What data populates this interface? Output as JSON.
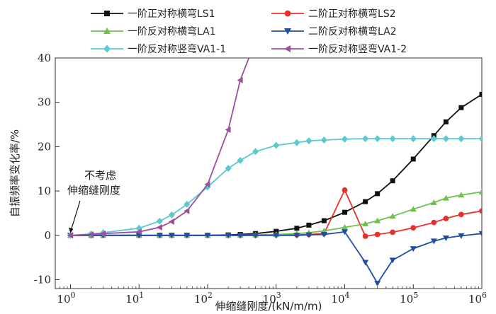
{
  "chart_data": {
    "type": "line",
    "xlabel": "伸缩缝刚度/(kN/m/m)",
    "ylabel": "自振频率变化率/%",
    "xscale": "log",
    "xlim": [
      0.6,
      1000000
    ],
    "ylim": [
      -12,
      40
    ],
    "yticks": [
      -10,
      0,
      10,
      20,
      30,
      40
    ],
    "xtick_labels": [
      {
        "base": "10",
        "exp": "0"
      },
      {
        "base": "10",
        "exp": "1"
      },
      {
        "base": "10",
        "exp": "2"
      },
      {
        "base": "10",
        "exp": "3"
      },
      {
        "base": "10",
        "exp": "4"
      },
      {
        "base": "10",
        "exp": "5"
      },
      {
        "base": "10",
        "exp": "6"
      }
    ],
    "grid": false,
    "legend_position": "top",
    "annotation": {
      "lines": [
        "不考虑",
        "伸缩缝刚度"
      ],
      "points_to": [
        1,
        0
      ]
    },
    "series": [
      {
        "name": "一阶正对称横弯LS1",
        "color": "#111111",
        "marker": "square",
        "x": [
          1,
          2,
          3,
          10,
          20,
          30,
          50,
          100,
          200,
          300,
          500,
          1000,
          2000,
          3000,
          5000,
          10000,
          20000,
          30000,
          50000,
          100000,
          200000,
          300000,
          500000,
          1000000
        ],
        "y": [
          0,
          0,
          0,
          0,
          0,
          0,
          0,
          0,
          0.1,
          0.2,
          0.4,
          0.9,
          1.6,
          2.3,
          3.3,
          5.2,
          7.6,
          9.4,
          12.3,
          17.2,
          22.5,
          25.6,
          28.8,
          31.8
        ]
      },
      {
        "name": "二阶正对称横弯LS2",
        "color": "#e8312a",
        "marker": "circle",
        "x": [
          1,
          2,
          3,
          10,
          20,
          30,
          50,
          100,
          200,
          300,
          500,
          1000,
          2000,
          3000,
          5000,
          10000,
          20000,
          30000,
          50000,
          100000,
          200000,
          300000,
          500000,
          1000000
        ],
        "y": [
          0,
          0,
          0,
          0,
          0,
          0,
          0,
          0,
          0,
          0,
          0,
          0.1,
          0.1,
          0.2,
          0.4,
          10.2,
          -0.2,
          0.2,
          0.7,
          1.7,
          2.9,
          3.8,
          4.7,
          5.5
        ]
      },
      {
        "name": "一阶反对称横弯LA1",
        "color": "#6cc24a",
        "marker": "triangle-up",
        "x": [
          1,
          2,
          3,
          10,
          20,
          30,
          50,
          100,
          200,
          300,
          500,
          1000,
          2000,
          3000,
          5000,
          10000,
          20000,
          30000,
          50000,
          100000,
          200000,
          300000,
          500000,
          1000000
        ],
        "y": [
          0,
          0,
          0,
          0,
          0,
          0,
          0,
          0,
          0,
          0,
          0.1,
          0.2,
          0.4,
          0.6,
          1.0,
          1.8,
          2.6,
          3.3,
          4.3,
          5.9,
          7.4,
          8.4,
          9.1,
          9.8
        ]
      },
      {
        "name": "二阶反对称横弯LA2",
        "color": "#1f4ea3",
        "marker": "triangle-down",
        "x": [
          1,
          2,
          3,
          10,
          20,
          30,
          50,
          100,
          200,
          300,
          500,
          1000,
          2000,
          3000,
          5000,
          10000,
          20000,
          30000,
          50000,
          100000,
          200000,
          300000,
          500000,
          1000000
        ],
        "y": [
          0,
          0,
          0,
          0,
          0,
          0,
          0,
          0,
          0,
          0,
          0,
          0,
          0,
          0.1,
          0.2,
          0.8,
          -6.1,
          -10.8,
          -5.6,
          -3.0,
          -1.3,
          -0.6,
          -0.1,
          0.4
        ]
      },
      {
        "name": "一阶反对称竖弯VA1-1",
        "color": "#5cc8d0",
        "marker": "diamond",
        "x": [
          1,
          2,
          3,
          10,
          20,
          30,
          50,
          100,
          200,
          300,
          500,
          1000,
          2000,
          3000,
          5000,
          10000,
          20000,
          30000,
          50000,
          100000,
          200000,
          300000,
          500000,
          1000000
        ],
        "y": [
          0,
          0.3,
          0.6,
          1.6,
          3.2,
          4.6,
          7.0,
          10.9,
          15.1,
          16.9,
          18.9,
          20.3,
          20.9,
          21.3,
          21.5,
          21.7,
          21.8,
          21.8,
          21.8,
          21.8,
          21.8,
          21.8,
          21.8,
          21.8
        ]
      },
      {
        "name": "一阶反对称竖弯VA1-2",
        "color": "#9b4f9e",
        "marker": "triangle-left",
        "x": [
          1,
          2,
          3,
          10,
          20,
          30,
          50,
          100,
          200,
          300,
          400
        ],
        "y": [
          0,
          0.2,
          0.4,
          0.8,
          1.8,
          3.1,
          5.5,
          11.5,
          23.8,
          35.0,
          40.0
        ]
      }
    ]
  }
}
